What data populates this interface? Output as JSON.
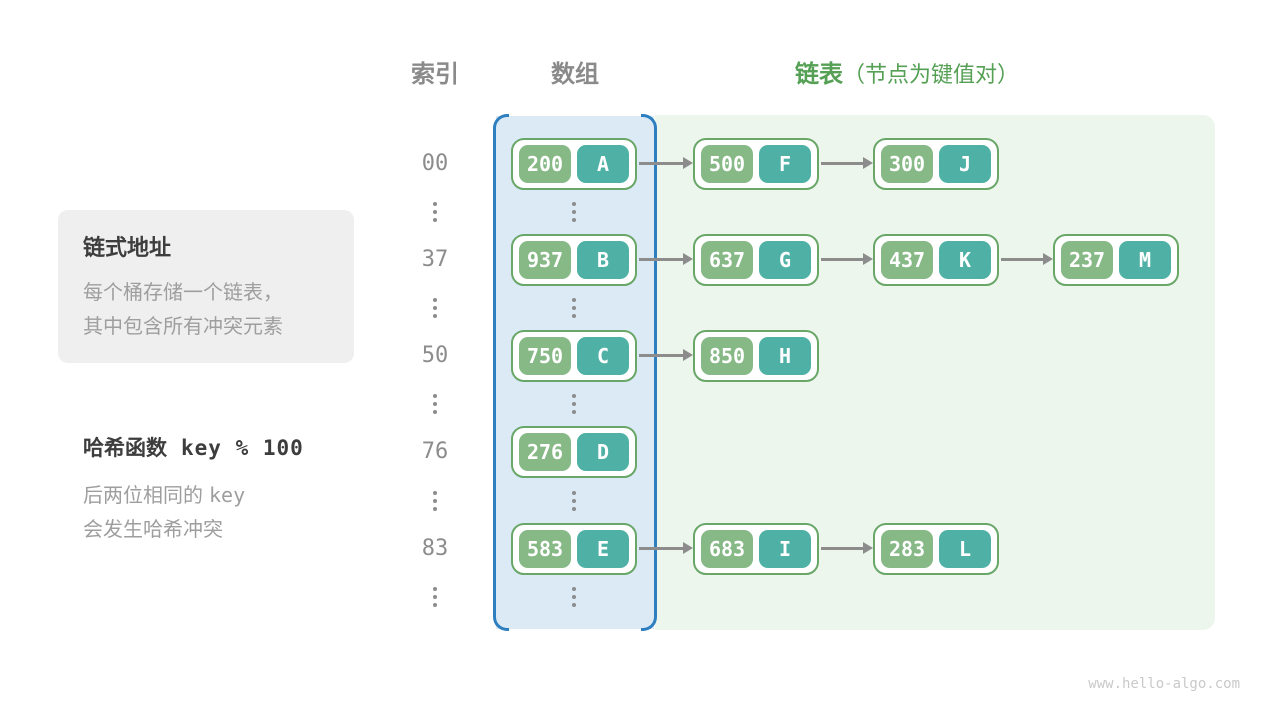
{
  "headers": {
    "index": "索引",
    "array": "数组",
    "list": "链表",
    "list_note": "（节点为键值对）"
  },
  "info_box": {
    "title": "链式地址",
    "line1": "每个桶存储一个链表，",
    "line2": "其中包含所有冲突元素"
  },
  "hash_note": {
    "title": "哈希函数",
    "formula": "key % 100",
    "line1_text": "后两位相同的",
    "line1_code": "key",
    "line2": "会发生哈希冲突"
  },
  "watermark": "www.hello-algo.com",
  "colors": {
    "key_green": "#86b986",
    "value_teal": "#4fb1a6",
    "node_border": "#68a768",
    "array_bg": "#dceaf6",
    "array_border": "#2e7fc0",
    "list_bg": "#edf6ec",
    "header_green": "#55a055",
    "gray": "#8c8c8c"
  },
  "rows": [
    {
      "index": "00",
      "bucket": {
        "key": "200",
        "value": "A"
      },
      "chain": [
        {
          "key": "500",
          "value": "F"
        },
        {
          "key": "300",
          "value": "J"
        }
      ]
    },
    {
      "index": "37",
      "bucket": {
        "key": "937",
        "value": "B"
      },
      "chain": [
        {
          "key": "637",
          "value": "G"
        },
        {
          "key": "437",
          "value": "K"
        },
        {
          "key": "237",
          "value": "M"
        }
      ]
    },
    {
      "index": "50",
      "bucket": {
        "key": "750",
        "value": "C"
      },
      "chain": [
        {
          "key": "850",
          "value": "H"
        }
      ]
    },
    {
      "index": "76",
      "bucket": {
        "key": "276",
        "value": "D"
      },
      "chain": []
    },
    {
      "index": "83",
      "bucket": {
        "key": "583",
        "value": "E"
      },
      "chain": [
        {
          "key": "683",
          "value": "I"
        },
        {
          "key": "283",
          "value": "L"
        }
      ]
    }
  ]
}
